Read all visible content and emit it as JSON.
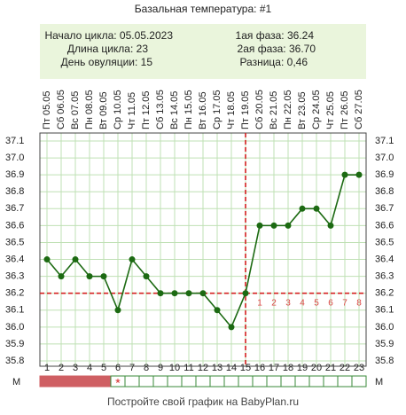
{
  "chart_data": {
    "type": "line",
    "title": "Базальная температура: #1",
    "info": [
      "Начало цикла: 05.05.2023",
      "Длина цикла: 23",
      "День овуляции: 15",
      "1ая фаза: 36.24",
      "2ая фаза: 36.70",
      "Разница: 0,46"
    ],
    "categories": [
      "Пт 05.05",
      "Сб 06.05",
      "Вс 07.05",
      "Пн 08.05",
      "Вт 09.05",
      "Ср 10.05",
      "Чт 11.05",
      "Пт 12.05",
      "Сб 13.05",
      "Вс 14.05",
      "Пн 15.05",
      "Вт 16.05",
      "Ср 17.05",
      "Чт 18.05",
      "Пт 19.05",
      "Сб 20.05",
      "Вс 21.05",
      "Пн 22.05",
      "Вт 23.05",
      "Ср 24.05",
      "Чт 25.05",
      "Пт 26.05",
      "Сб 27.05"
    ],
    "x": [
      1,
      2,
      3,
      4,
      5,
      6,
      7,
      8,
      9,
      10,
      11,
      12,
      13,
      14,
      15,
      16,
      17,
      18,
      19,
      20,
      21,
      22,
      23
    ],
    "values": [
      36.4,
      36.3,
      36.4,
      36.3,
      36.3,
      36.1,
      36.4,
      36.3,
      36.2,
      36.2,
      36.2,
      36.2,
      36.1,
      36.0,
      36.2,
      36.6,
      36.6,
      36.6,
      36.7,
      36.7,
      36.6,
      36.9,
      36.9
    ],
    "color": "#1c6a12",
    "ylim": [
      35.8,
      37.1
    ],
    "yticks": [
      35.8,
      35.9,
      {
        "value": 36.0,
        "label": "36.0"
      },
      36.1,
      36.2,
      36.3,
      36.4,
      36.5,
      36.6,
      36.7,
      36.8,
      36.9,
      {
        "value": 37.0,
        "label": "37.0"
      },
      37.1
    ],
    "grid": true,
    "coverline": 36.2,
    "ovulation_day": 15,
    "phase_day_labels": [
      "1",
      "2",
      "3",
      "4",
      "5",
      "6",
      "7",
      "8"
    ],
    "menstruation_label": "М",
    "menstruation_days": [
      1,
      2,
      3,
      4,
      5
    ],
    "menstruation_marker": {
      "day": 6,
      "symbol": "*"
    },
    "footer": "Постройте свой график на BabyPlan.ru"
  }
}
